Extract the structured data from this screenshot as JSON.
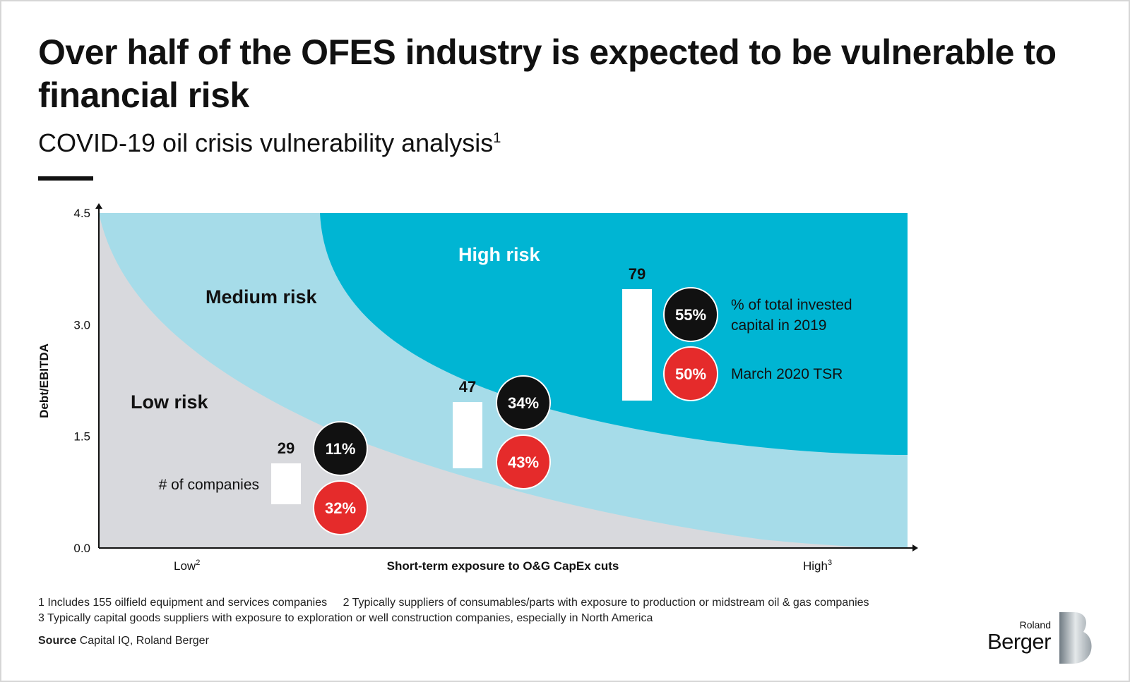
{
  "title": "Over half of the OFES industry is expected to be vulnerable to financial risk",
  "subtitle": "COVID-19 oil crisis vulnerability analysis",
  "subtitle_footnote_mark": "1",
  "colors": {
    "low_zone": "#d8d9dd",
    "medium_zone": "#a6dce9",
    "high_zone": "#00b5d3",
    "black_circle": "#111111",
    "red_circle": "#e52b2b",
    "bar": "#ffffff"
  },
  "chart_data": {
    "type": "scatter",
    "ylabel": "Debt/EBITDA",
    "xlabel": "Short-term exposure to O&G CapEx cuts",
    "x_low_label": "Low",
    "x_low_mark": "2",
    "x_high_label": "High",
    "x_high_mark": "3",
    "ylim": [
      0,
      4.5
    ],
    "yticks": [
      "0.0",
      "1.5",
      "3.0",
      "4.5"
    ],
    "zones": [
      {
        "name": "Low risk"
      },
      {
        "name": "Medium risk"
      },
      {
        "name": "High risk"
      }
    ],
    "groups": [
      {
        "zone": "Low risk",
        "companies": 29,
        "invested_capital": "11%",
        "tsr": "32%",
        "bar_value": 29
      },
      {
        "zone": "Medium risk",
        "companies": 47,
        "invested_capital": "34%",
        "tsr": "43%",
        "bar_value": 47
      },
      {
        "zone": "High risk",
        "companies": 79,
        "invested_capital": "55%",
        "tsr": "50%",
        "bar_value": 79
      }
    ],
    "annotations": {
      "companies_label": "# of companies",
      "black_legend": "% of total invested capital in 2019",
      "red_legend": "March 2020 TSR"
    }
  },
  "footnotes": {
    "f1": "1  Includes 155 oilfield equipment and services companies",
    "f2": "2  Typically suppliers of consumables/parts with exposure to production or midstream oil & gas companies",
    "f3": "3  Typically capital goods suppliers with exposure to exploration or well construction companies, especially in North America"
  },
  "source": {
    "label": "Source",
    "text": "Capital IQ, Roland Berger"
  },
  "logo": {
    "line1": "Roland",
    "line2": "Berger"
  }
}
